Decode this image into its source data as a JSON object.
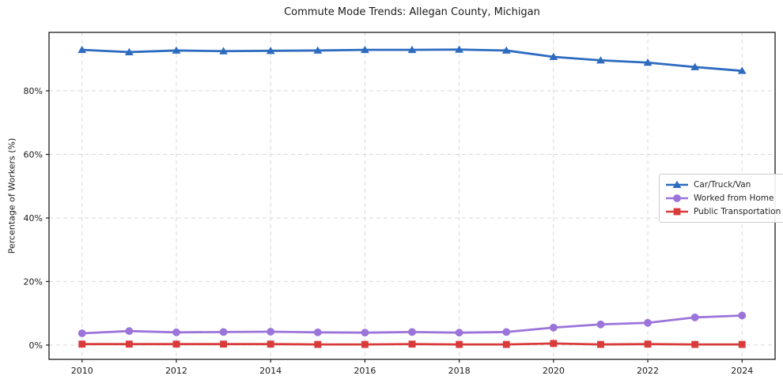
{
  "chart_data": {
    "type": "line",
    "title": "Commute Mode Trends: Allegan County, Michigan",
    "xlabel": "",
    "ylabel": "Percentage of Workers (%)",
    "x": [
      2010,
      2011,
      2012,
      2013,
      2014,
      2015,
      2016,
      2017,
      2018,
      2019,
      2020,
      2021,
      2022,
      2023,
      2024
    ],
    "series": [
      {
        "name": "Car/Truck/Van",
        "marker": "triangle",
        "color": "#2d6bbf",
        "values": [
          92.9,
          92.2,
          92.7,
          92.5,
          92.6,
          92.7,
          92.9,
          92.9,
          93.0,
          92.7,
          90.7,
          89.6,
          88.9,
          87.5,
          86.3
        ]
      },
      {
        "name": "Worked from Home",
        "marker": "circle",
        "color": "#9b74da",
        "values": [
          3.7,
          4.4,
          4.0,
          4.1,
          4.2,
          4.0,
          3.9,
          4.1,
          3.9,
          4.1,
          5.5,
          6.5,
          7.0,
          8.7,
          9.3
        ]
      },
      {
        "name": "Public Transportation",
        "marker": "square",
        "color": "#d93b3b",
        "values": [
          0.3,
          0.3,
          0.3,
          0.3,
          0.3,
          0.2,
          0.2,
          0.3,
          0.2,
          0.2,
          0.5,
          0.2,
          0.3,
          0.2,
          0.2
        ]
      }
    ],
    "x_ticks": [
      2010,
      2012,
      2014,
      2016,
      2018,
      2020,
      2022,
      2024
    ],
    "x_tick_labels": [
      "2010",
      "2012",
      "2014",
      "2016",
      "2018",
      "2020",
      "2022",
      "2024"
    ],
    "y_ticks": [
      0,
      20,
      40,
      60,
      80
    ],
    "y_tick_labels": [
      "0%",
      "20%",
      "40%",
      "60%",
      "80%"
    ],
    "xlim": [
      2009.3,
      2024.7
    ],
    "ylim": [
      -4.5,
      98.4
    ],
    "grid": true,
    "legend_position": "center-right"
  },
  "colors": {
    "background": "#ffffff",
    "grid": "#d9d9d9",
    "axis": "#1a1a1a",
    "text": "#1a1a1a",
    "legend_border": "#cccccc"
  }
}
